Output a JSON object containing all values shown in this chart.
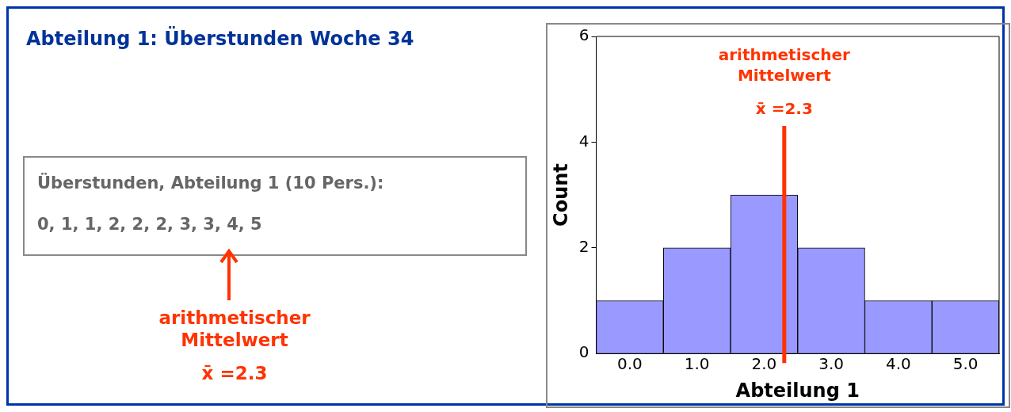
{
  "chart_data": {
    "type": "histogram",
    "title": "Abteilung 1: Überstunden Woche 34",
    "xlabel": "Abteilung 1",
    "ylabel": "Count",
    "bins": [
      -0.5,
      0.5,
      1.5,
      2.5,
      3.5,
      4.5,
      5.5
    ],
    "values": [
      1,
      2,
      3,
      2,
      1,
      1
    ],
    "color": "#9999ff",
    "xlim": [
      -0.5,
      5.5
    ],
    "xticks": [
      {
        "value": 0,
        "label": "0.0"
      },
      {
        "value": 1,
        "label": "1.0"
      },
      {
        "value": 2,
        "label": "2.0"
      },
      {
        "value": 3,
        "label": "3.0"
      },
      {
        "value": 4,
        "label": "4.0"
      },
      {
        "value": 5,
        "label": "5.0"
      }
    ],
    "ylim": [
      0,
      6
    ],
    "yticks": [
      0,
      2,
      4,
      6
    ],
    "ref_lines": [
      {
        "axis": "x",
        "value": 2.3,
        "label": "x̄ =2.3",
        "color": "#ff3300"
      }
    ],
    "annotations": [
      "Überstunden, Abteilung 1 (10 Pers.):",
      "0, 1, 1, 2, 2, 2, 3, 3, 4, 5",
      "arithmetischer Mittelwert",
      "x̄ =2.3",
      "arithmetischer Mittelwert"
    ]
  }
}
